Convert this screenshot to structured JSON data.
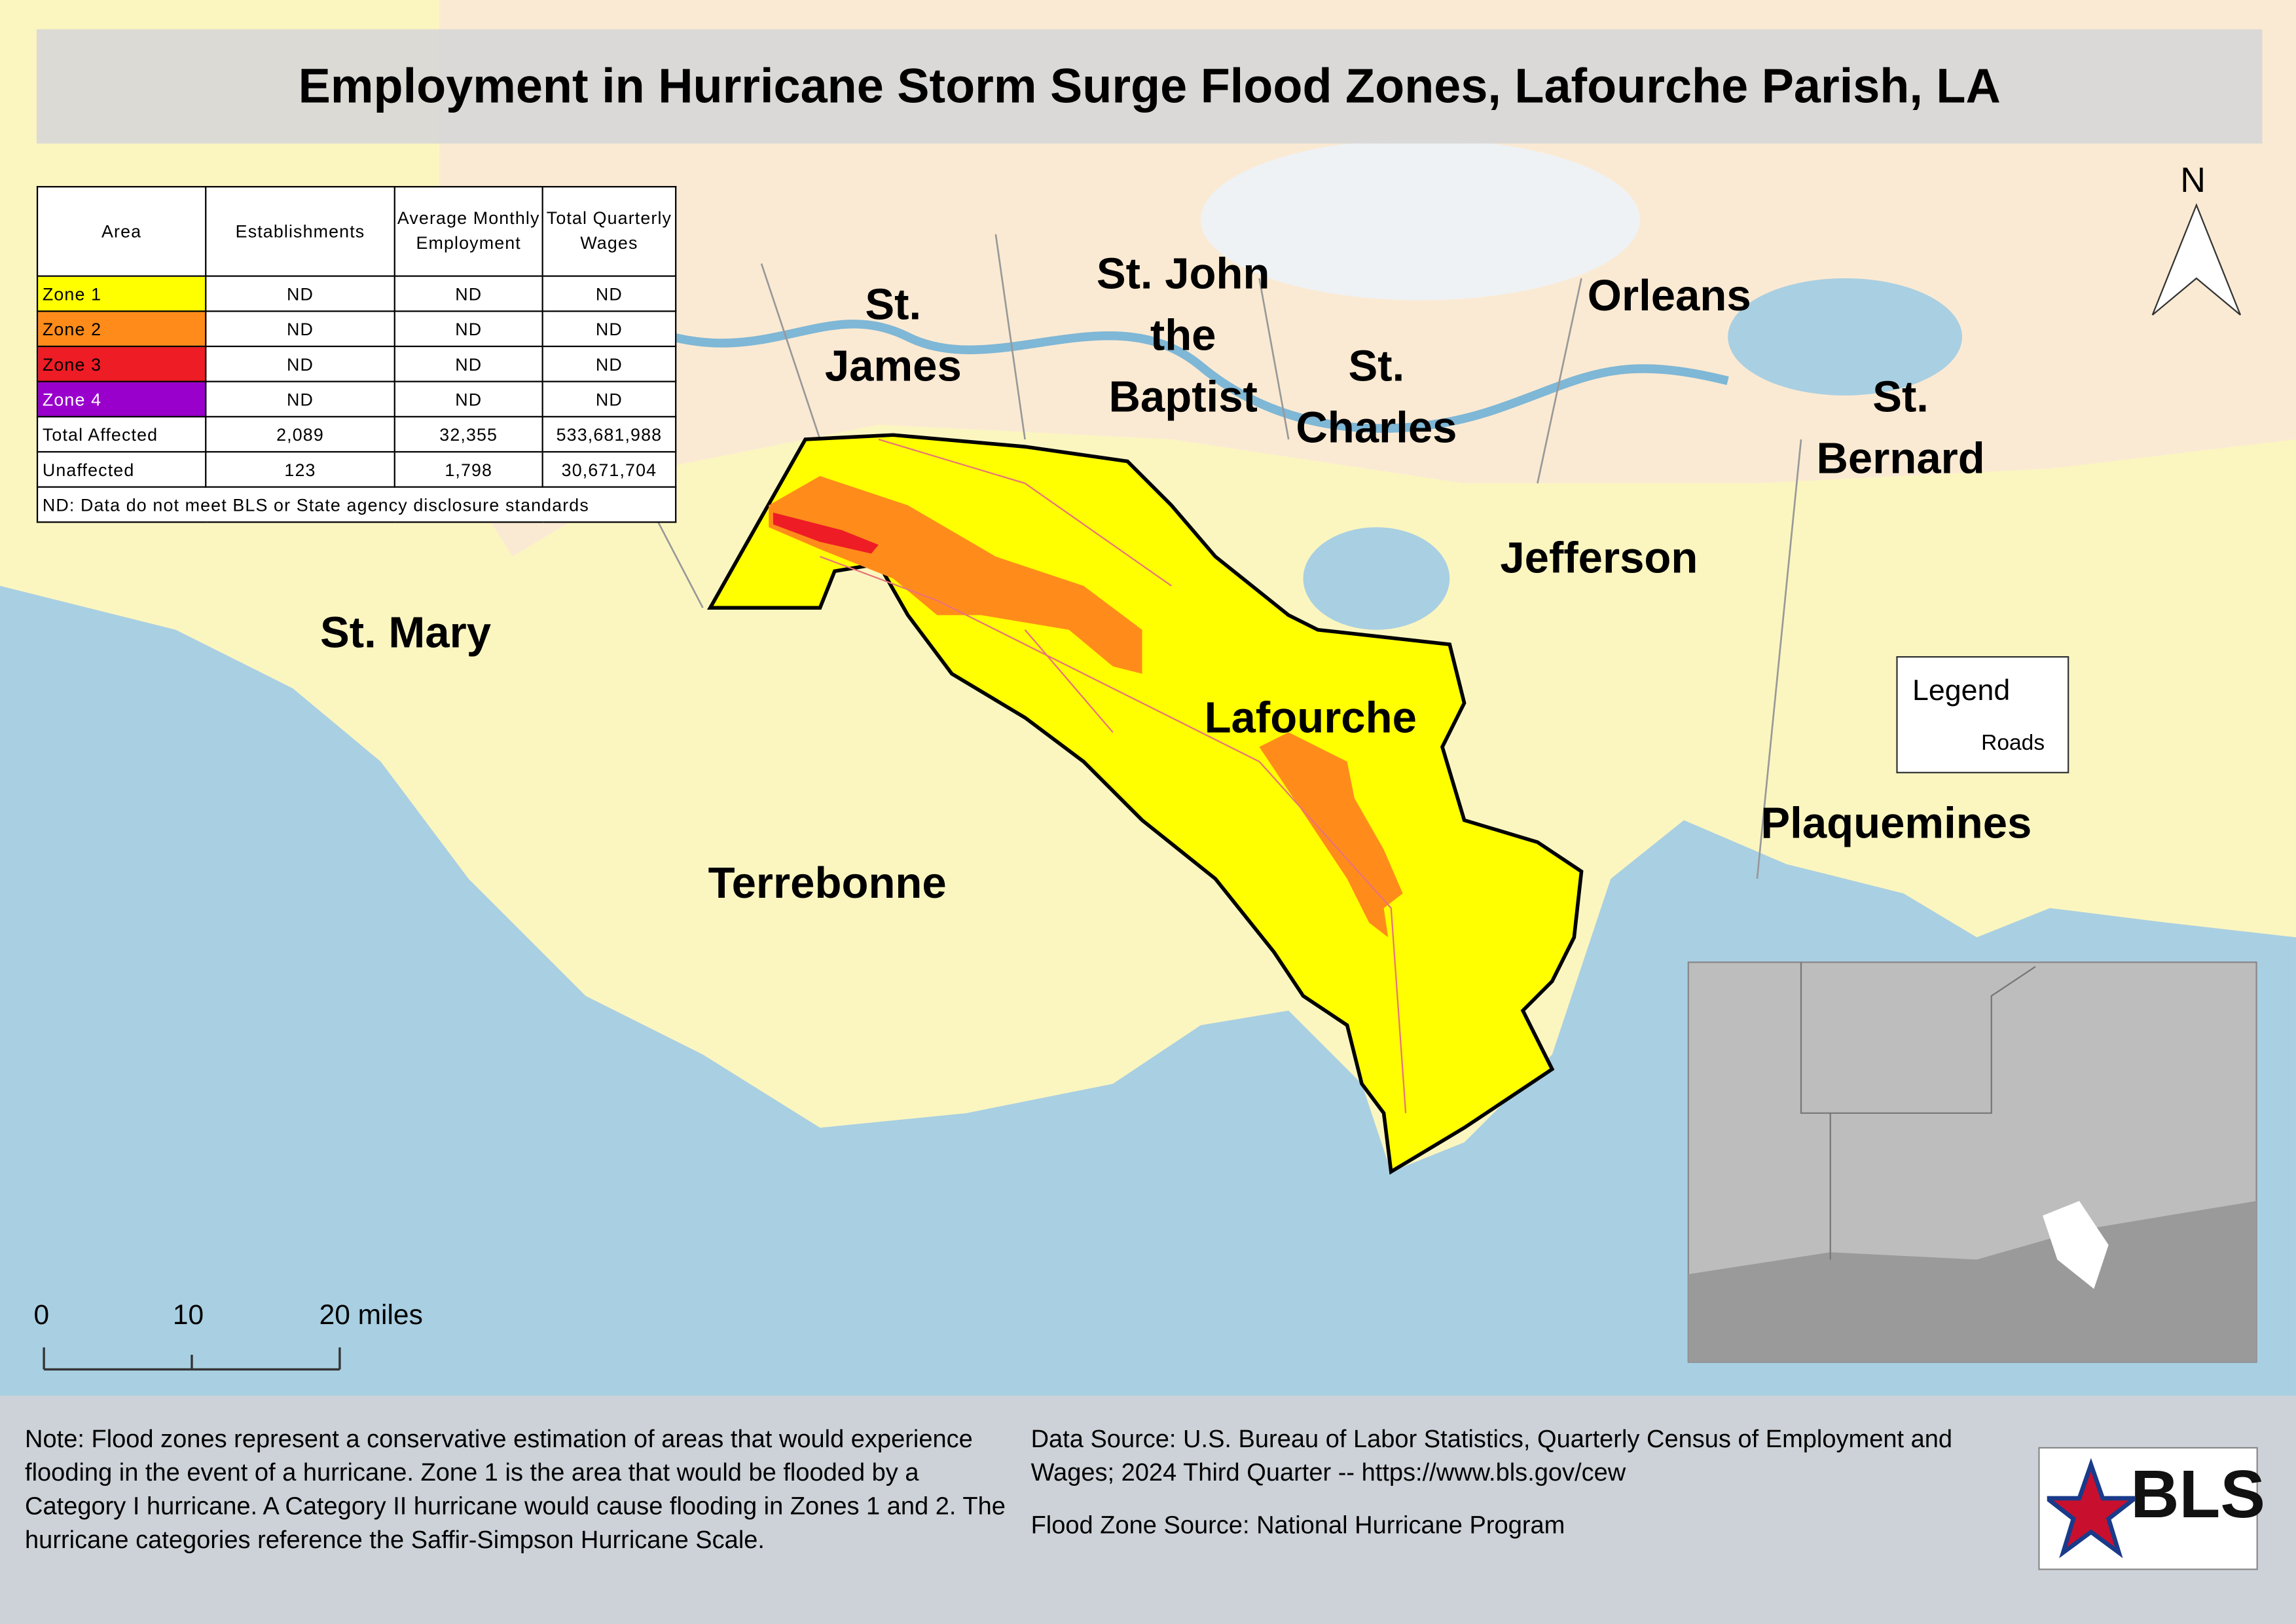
{
  "title": "Employment in Hurricane Storm Surge Flood Zones, Lafourche Parish, LA",
  "table": {
    "headers": [
      "Area",
      "Establishments",
      "Average Monthly Employment",
      "Total Quarterly Wages"
    ],
    "rows": [
      [
        "Zone 1",
        "ND",
        "ND",
        "ND"
      ],
      [
        "Zone 2",
        "ND",
        "ND",
        "ND"
      ],
      [
        "Zone 3",
        "ND",
        "ND",
        "ND"
      ],
      [
        "Zone 4",
        "ND",
        "ND",
        "ND"
      ],
      [
        "Total Affected",
        "2,089",
        "32,355",
        "533,681,988"
      ],
      [
        "Unaffected",
        "123",
        "1,798",
        "30,671,704"
      ]
    ],
    "footnote": "ND: Data do not meet BLS or State agency disclosure standards"
  },
  "labels": [
    {
      "lines": [
        "St.",
        "James"
      ]
    },
    {
      "lines": [
        "St. John",
        "the",
        "Baptist"
      ]
    },
    {
      "lines": [
        "St.",
        "Charles"
      ]
    },
    {
      "lines": [
        "Orleans"
      ]
    },
    {
      "lines": [
        "St.",
        "Bernard"
      ]
    },
    {
      "lines": [
        "Jefferson"
      ]
    },
    {
      "lines": [
        "St. Mary"
      ]
    },
    {
      "lines": [
        "Lafourche"
      ]
    },
    {
      "lines": [
        "Terrebonne"
      ]
    },
    {
      "lines": [
        "Plaquemines"
      ]
    }
  ],
  "north": "N",
  "legend": {
    "title": "Legend",
    "items": [
      "Roads"
    ]
  },
  "scale_labels": [
    "0",
    "10",
    "20 miles"
  ],
  "note": "Note: Flood zones represent a conservative estimation of areas that would experience flooding in the event of a hurricane. Zone 1 is the area that would be flooded by a Category I hurricane. A Category II hurricane would cause flooding in Zones 1 and 2. The hurricane categories reference the Saffir-Simpson Hurricane Scale.",
  "data_source": "Data Source: U.S. Bureau of Labor Statistics, Quarterly Census of Employment and Wages; 2024 Third Quarter -- https://www.bls.gov/cew",
  "flood_source": "Flood Zone Source: National Hurricane Program",
  "logo": "BLS"
}
